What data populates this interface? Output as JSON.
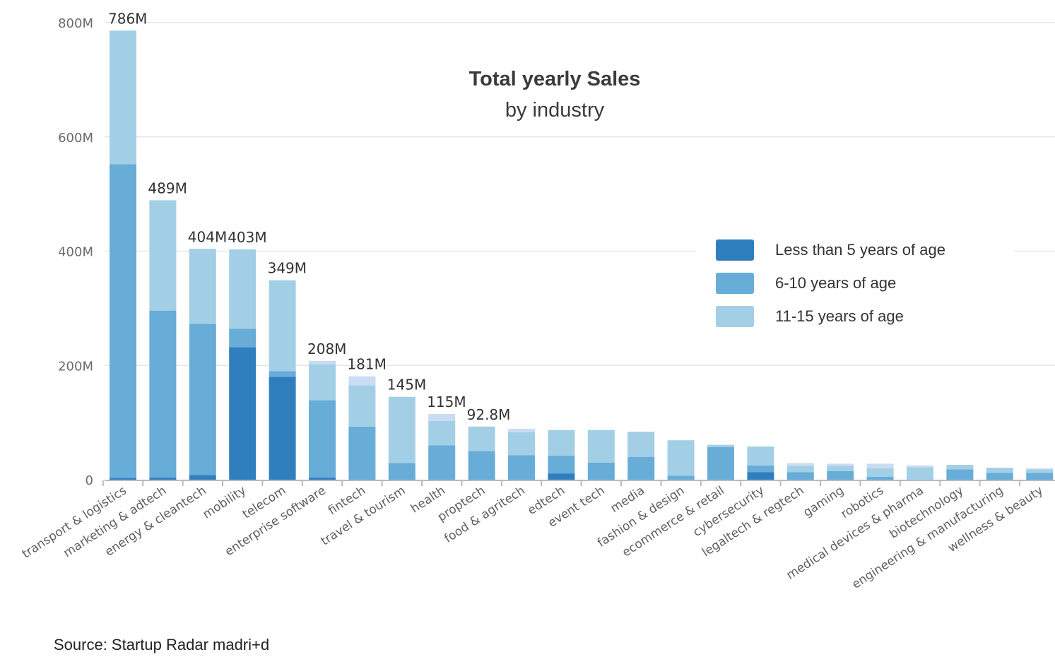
{
  "chart_data": {
    "type": "bar",
    "stacked": true,
    "title": "Total yearly Sales",
    "subtitle": "by industry",
    "xlabel": "",
    "ylabel": "",
    "ylim": [
      0,
      800000000
    ],
    "yticks": [
      0,
      200000000,
      400000000,
      600000000,
      800000000
    ],
    "ytick_labels": [
      "0",
      "200M",
      "400M",
      "600M",
      "800M"
    ],
    "grid": true,
    "legend_position": "right",
    "categories": [
      "transport & logistics",
      "marketing & adtech",
      "energy & cleantech",
      "mobility",
      "telecom",
      "enterprise software",
      "fintech",
      "travel & tourism",
      "health",
      "proptech",
      "food & agritech",
      "edtech",
      "event tech",
      "media",
      "fashion & design",
      "ecommerce & retail",
      "cybersecurity",
      "legaltech & regtech",
      "gaming",
      "robotics",
      "medical devices & pharma",
      "biotechnology",
      "engineering & manufacturing",
      "wellness & beauty"
    ],
    "series": [
      {
        "name": "Less than 5 years of age",
        "color": "#2f7fbf",
        "values": [
          3000000,
          4000000,
          8000000,
          232000000,
          180000000,
          4000000,
          0,
          0,
          0,
          0,
          0,
          11000000,
          0,
          0,
          0,
          0,
          13000000,
          0,
          0,
          0,
          0,
          0,
          0,
          0
        ]
      },
      {
        "name": "6-10 years of age",
        "color": "#68acd8",
        "values": [
          549000000,
          292000000,
          265000000,
          32000000,
          10000000,
          135000000,
          93000000,
          29000000,
          60000000,
          50000000,
          43000000,
          31000000,
          30000000,
          40000000,
          7000000,
          57000000,
          12000000,
          13000000,
          15000000,
          5000000,
          0,
          18000000,
          12000000,
          12000000
        ]
      },
      {
        "name": "11-15 years of age",
        "color": "#a3cfe6",
        "values": [
          234000000,
          193000000,
          131000000,
          139000000,
          159000000,
          63000000,
          72000000,
          116000000,
          43000000,
          43000000,
          40000000,
          45000000,
          57000000,
          44000000,
          62000000,
          4000000,
          33000000,
          11000000,
          9000000,
          15000000,
          22000000,
          8000000,
          9000000,
          6000000
        ]
      },
      {
        "name": "",
        "color": "#c9dcf2",
        "values": [
          0,
          0,
          0,
          0,
          0,
          6000000,
          16000000,
          0,
          12000000,
          0,
          6000000,
          0,
          0,
          0,
          0,
          0,
          0,
          5000000,
          4000000,
          8000000,
          3000000,
          0,
          0,
          2000000
        ]
      }
    ],
    "data_labels": {
      "transport & logistics": "786M",
      "marketing & adtech": "489M",
      "energy & cleantech": "404M",
      "mobility": "403M",
      "telecom": "349M",
      "enterprise software": "208M",
      "fintech": "181M",
      "travel & tourism": "145M",
      "health": "115M",
      "proptech": "92.8M"
    },
    "source": "Source: Startup Radar madri+d"
  }
}
